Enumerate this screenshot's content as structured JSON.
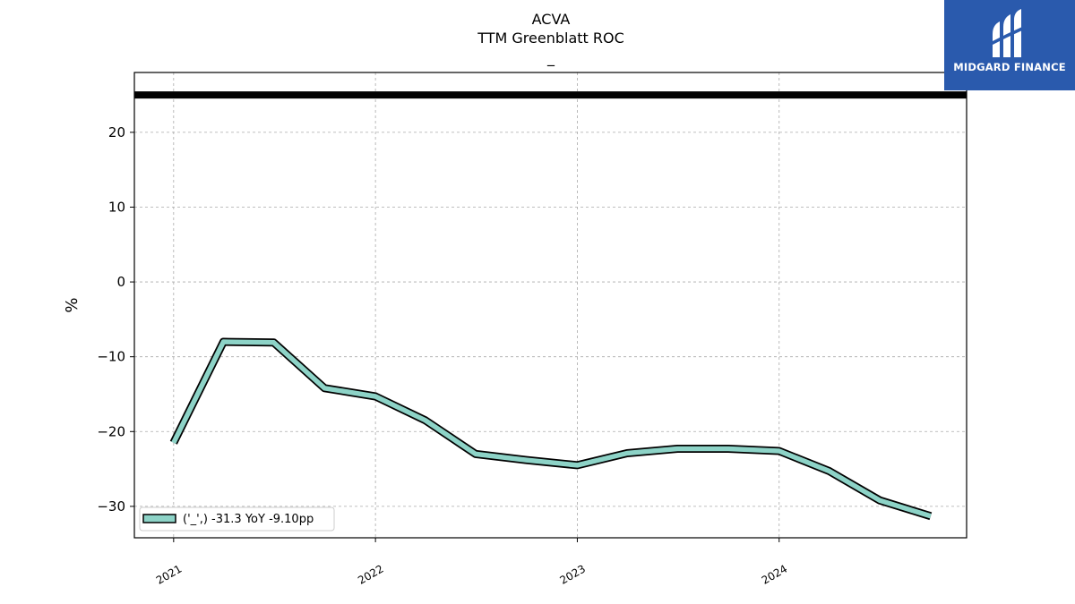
{
  "chart_data": {
    "type": "line",
    "title": "ACVA",
    "subtitle": "TTM Greenblatt ROC",
    "subtitle2": "_",
    "xlabel": "",
    "ylabel": "%",
    "x": [
      "2021-01-01",
      "2021-04-01",
      "2021-07-01",
      "2021-10-01",
      "2022-01-01",
      "2022-04-01",
      "2022-07-01",
      "2022-10-01",
      "2023-01-01",
      "2023-04-01",
      "2023-07-01",
      "2023-10-01",
      "2024-01-01",
      "2024-04-01",
      "2024-07-01",
      "2024-10-01"
    ],
    "series": [
      {
        "name": "('_',) -31.3 YoY -9.10pp",
        "values": [
          -21.5,
          -8.0,
          -8.1,
          -14.2,
          -15.3,
          -18.5,
          -23.0,
          -23.8,
          -24.5,
          -22.9,
          -22.3,
          -22.3,
          -22.6,
          -25.3,
          -29.2,
          -31.3
        ],
        "color": "#8dd3c7"
      }
    ],
    "reference_line": {
      "y": 25,
      "color": "#000000"
    },
    "xticks": [
      "2021",
      "2022",
      "2023",
      "2024"
    ],
    "yticks": [
      -30,
      -20,
      -10,
      0,
      10,
      20
    ],
    "ytick_labels": [
      "−30",
      "−20",
      "−10",
      "0",
      "10",
      "20"
    ],
    "ylim": [
      -34.2,
      28
    ],
    "xlim": [
      "2020-10-22",
      "2024-12-05"
    ],
    "grid": true,
    "legend_position": "lower-left"
  },
  "logo": {
    "text": "MIDGARD FINANCE",
    "color": "#2a5aad"
  }
}
